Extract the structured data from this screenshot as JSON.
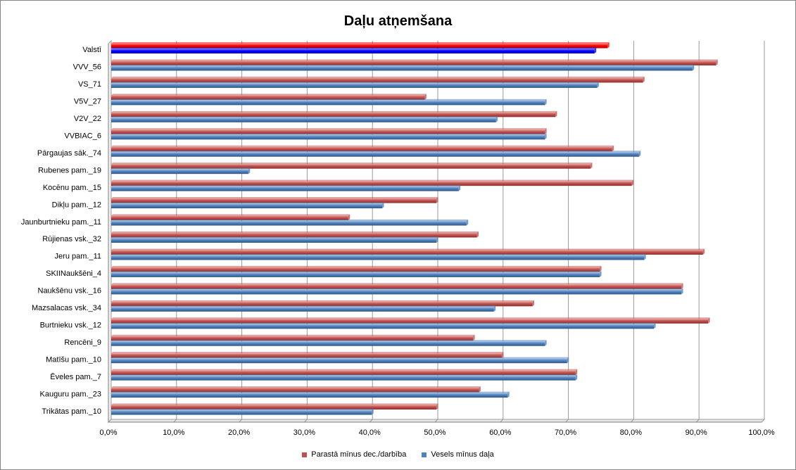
{
  "chart_data": {
    "type": "bar",
    "orientation": "horizontal",
    "title": "Daļu atņemšana",
    "categories": [
      "Valstī",
      "VVV_56",
      "VS_71",
      "V5V_27",
      "V2V_22",
      "VVBIAC_6",
      "Pārgaujas sāk._74",
      "Rubenes pam._19",
      "Kocēnu pam._15",
      "Dikļu pam._12",
      "Jaunburtnieku pam._11",
      "Rūjienas vsk._32",
      "Jeru pam._11",
      "SKIINaukšēni_4",
      "Naukšēnu vsk._16",
      "Mazsalacas vsk._34",
      "Burtnieku vsk._12",
      "Rencēni_9",
      "Matīšu pam._10",
      "Ēveles pam._7",
      "Kauguru pam._23",
      "Trikātas pam._10"
    ],
    "series": [
      {
        "name": "Parastā mīnus dec./darbība",
        "color": "#c0504d",
        "highlight_color": "#ff0000",
        "values": [
          76.0,
          92.6,
          81.4,
          48.0,
          68.0,
          66.4,
          76.7,
          73.4,
          79.7,
          49.8,
          36.3,
          56.0,
          90.6,
          74.8,
          87.3,
          64.5,
          91.4,
          55.4,
          59.8,
          71.1,
          56.3,
          49.8
        ]
      },
      {
        "name": "Vesels mīnus daļa",
        "color": "#4f81bd",
        "highlight_color": "#0000ff",
        "values": [
          74.0,
          89.0,
          74.4,
          66.4,
          58.9,
          66.4,
          80.8,
          21.0,
          53.2,
          41.5,
          54.4,
          49.8,
          81.6,
          74.8,
          87.3,
          58.6,
          83.1,
          66.4,
          69.8,
          71.1,
          60.7,
          39.9
        ]
      }
    ],
    "highlight_categories": [
      "Valstī"
    ],
    "xlim": [
      0,
      100
    ],
    "xticks": [
      "0,0%",
      "10,0%",
      "20,0%",
      "30,0%",
      "40,0%",
      "50,0%",
      "60,0%",
      "70,0%",
      "80,0%",
      "90,0%",
      "100,0%"
    ],
    "xlabel": "",
    "ylabel": "",
    "grid": "vertical",
    "legend_position": "bottom"
  }
}
